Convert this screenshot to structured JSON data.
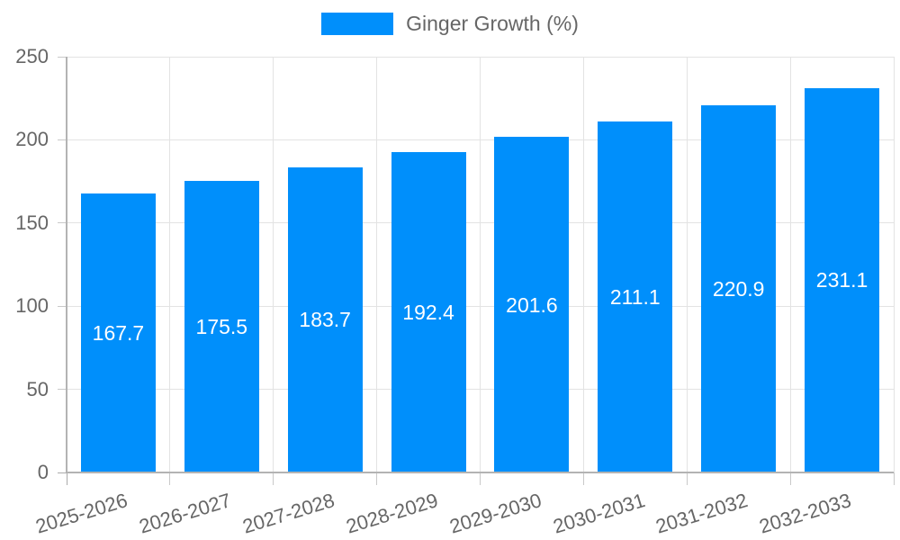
{
  "chart_data": {
    "type": "bar",
    "title": "Ginger Growth (%)",
    "series_name": "Ginger Growth (%)",
    "categories": [
      "2025-2026",
      "2026-2027",
      "2027-2028",
      "2028-2029",
      "2029-2030",
      "2030-2031",
      "2031-2032",
      "2032-2033"
    ],
    "values": [
      167.7,
      175.5,
      183.7,
      192.4,
      201.6,
      211.1,
      220.9,
      231.1
    ],
    "xlabel": "",
    "ylabel": "",
    "ylim": [
      0,
      250
    ],
    "yticks": [
      0,
      50,
      100,
      150,
      200,
      250
    ],
    "grid": true,
    "legend_position": "top",
    "value_labels": "inside-center",
    "colors": {
      "bar": "#008FFB",
      "value_label_text": "#ffffff",
      "axis_text": "#666666",
      "gridline": "#e3e3e3",
      "zero_gridline": "#b3b3b3",
      "tick": "#c9c9c9",
      "zero_tick": "#ababab",
      "background": "#ffffff"
    }
  }
}
